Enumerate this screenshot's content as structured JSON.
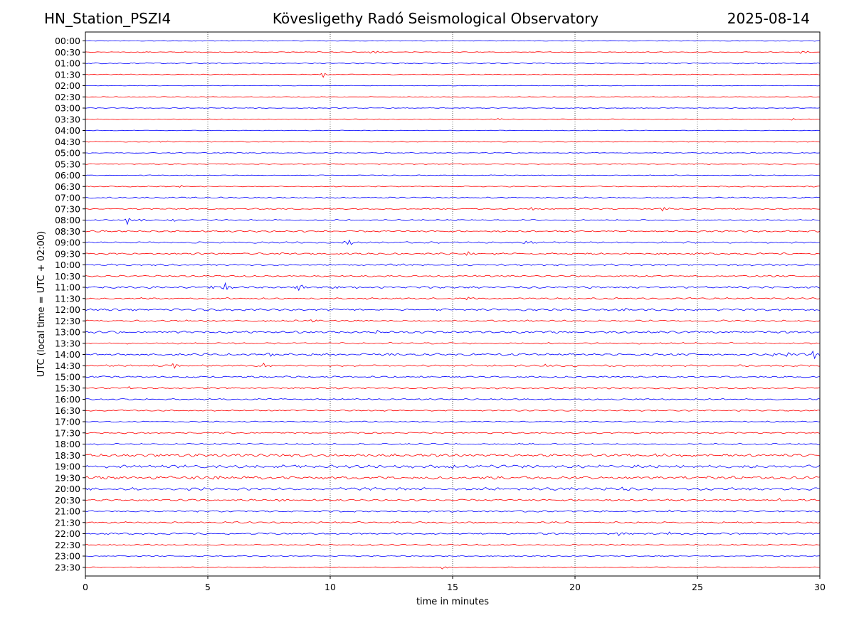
{
  "header": {
    "station": "HN_Station_PSZI4",
    "observatory": "Kövesligethy Radó Seismological Observatory",
    "date": "2025-08-14"
  },
  "chart_data": {
    "type": "line",
    "title": "Kövesligethy Radó Seismological Observatory",
    "xlabel": "time in minutes",
    "ylabel": "UTC (local time = UTC + 02:00)",
    "xlim": [
      0,
      30
    ],
    "xticks": [
      0,
      5,
      10,
      15,
      20,
      25,
      30
    ],
    "grid": "vertical dotted at each x tick",
    "colors": {
      "blue_trace": "#0000ff",
      "red_trace": "#ff0000"
    },
    "trace_color_pattern": "alternating blue (hh:00) and red (hh:30)",
    "rows": [
      "00:00",
      "00:30",
      "01:00",
      "01:30",
      "02:00",
      "02:30",
      "03:00",
      "03:30",
      "04:00",
      "04:30",
      "05:00",
      "05:30",
      "06:00",
      "06:30",
      "07:00",
      "07:30",
      "08:00",
      "08:30",
      "09:00",
      "09:30",
      "10:00",
      "10:30",
      "11:00",
      "11:30",
      "12:00",
      "12:30",
      "13:00",
      "13:30",
      "14:00",
      "14:30",
      "15:00",
      "15:30",
      "16:00",
      "16:30",
      "17:00",
      "17:30",
      "18:00",
      "18:30",
      "19:00",
      "19:30",
      "20:00",
      "20:30",
      "21:00",
      "21:30",
      "22:00",
      "22:30",
      "23:00",
      "23:30"
    ],
    "row_noise_level": [
      0.3,
      0.4,
      0.5,
      0.4,
      0.3,
      0.3,
      0.4,
      0.4,
      0.3,
      0.5,
      0.4,
      0.4,
      0.4,
      0.5,
      0.6,
      0.6,
      0.7,
      0.8,
      0.8,
      0.8,
      0.9,
      0.8,
      1.0,
      0.8,
      1.0,
      0.9,
      1.0,
      0.8,
      1.0,
      0.9,
      0.8,
      0.8,
      0.7,
      0.7,
      0.6,
      0.7,
      0.8,
      1.3,
      1.4,
      1.4,
      1.3,
      0.9,
      0.8,
      0.8,
      0.8,
      0.7,
      0.5,
      0.5
    ],
    "events": [
      {
        "row": "00:30",
        "minute": 11.7,
        "amp": 3
      },
      {
        "row": "00:30",
        "minute": 29.3,
        "amp": 4
      },
      {
        "row": "01:30",
        "minute": 9.7,
        "amp": 4
      },
      {
        "row": "03:30",
        "minute": 16.8,
        "amp": 2
      },
      {
        "row": "03:30",
        "minute": 28.8,
        "amp": 2
      },
      {
        "row": "04:30",
        "minute": 3.0,
        "amp": 2
      },
      {
        "row": "06:30",
        "minute": 3.9,
        "amp": 2
      },
      {
        "row": "07:30",
        "minute": 18.2,
        "amp": 3
      },
      {
        "row": "07:30",
        "minute": 23.6,
        "amp": 4
      },
      {
        "row": "08:00",
        "minute": 1.7,
        "amp": 6
      },
      {
        "row": "08:00",
        "minute": 2.2,
        "amp": 3
      },
      {
        "row": "08:00",
        "minute": 3.5,
        "amp": 3
      },
      {
        "row": "09:00",
        "minute": 10.7,
        "amp": 6
      },
      {
        "row": "09:00",
        "minute": 18.0,
        "amp": 2
      },
      {
        "row": "09:30",
        "minute": 15.6,
        "amp": 3
      },
      {
        "row": "09:30",
        "minute": 16.8,
        "amp": 2
      },
      {
        "row": "11:00",
        "minute": 5.1,
        "amp": 4
      },
      {
        "row": "11:00",
        "minute": 5.7,
        "amp": 6
      },
      {
        "row": "11:00",
        "minute": 8.7,
        "amp": 6
      },
      {
        "row": "11:00",
        "minute": 10.1,
        "amp": 4
      },
      {
        "row": "11:30",
        "minute": 15.5,
        "amp": 3
      },
      {
        "row": "12:00",
        "minute": 21.9,
        "amp": 4
      },
      {
        "row": "12:30",
        "minute": 9.3,
        "amp": 3
      },
      {
        "row": "13:00",
        "minute": 0.2,
        "amp": 2
      },
      {
        "row": "13:00",
        "minute": 11.9,
        "amp": 2
      },
      {
        "row": "14:00",
        "minute": 7.5,
        "amp": 3
      },
      {
        "row": "14:00",
        "minute": 12.3,
        "amp": 4
      },
      {
        "row": "14:00",
        "minute": 28.1,
        "amp": 4
      },
      {
        "row": "14:00",
        "minute": 28.7,
        "amp": 4
      },
      {
        "row": "14:00",
        "minute": 29.8,
        "amp": 9
      },
      {
        "row": "14:30",
        "minute": 0.2,
        "amp": 2
      },
      {
        "row": "14:30",
        "minute": 3.6,
        "amp": 4
      },
      {
        "row": "14:30",
        "minute": 7.3,
        "amp": 4
      },
      {
        "row": "14:30",
        "minute": 18.8,
        "amp": 4
      },
      {
        "row": "15:30",
        "minute": 1.8,
        "amp": 2
      },
      {
        "row": "18:30",
        "minute": 23.3,
        "amp": 3
      },
      {
        "row": "19:00",
        "minute": 15.0,
        "amp": 3
      },
      {
        "row": "19:30",
        "minute": 4.4,
        "amp": 3
      },
      {
        "row": "19:30",
        "minute": 5.3,
        "amp": 3
      },
      {
        "row": "20:00",
        "minute": 21.9,
        "amp": 3
      },
      {
        "row": "20:30",
        "minute": 8.0,
        "amp": 3
      },
      {
        "row": "20:30",
        "minute": 28.3,
        "amp": 3
      },
      {
        "row": "21:00",
        "minute": 23.8,
        "amp": 2
      },
      {
        "row": "22:00",
        "minute": 21.8,
        "amp": 3
      },
      {
        "row": "22:00",
        "minute": 23.9,
        "amp": 3
      },
      {
        "row": "23:30",
        "minute": 14.6,
        "amp": 3
      }
    ]
  }
}
